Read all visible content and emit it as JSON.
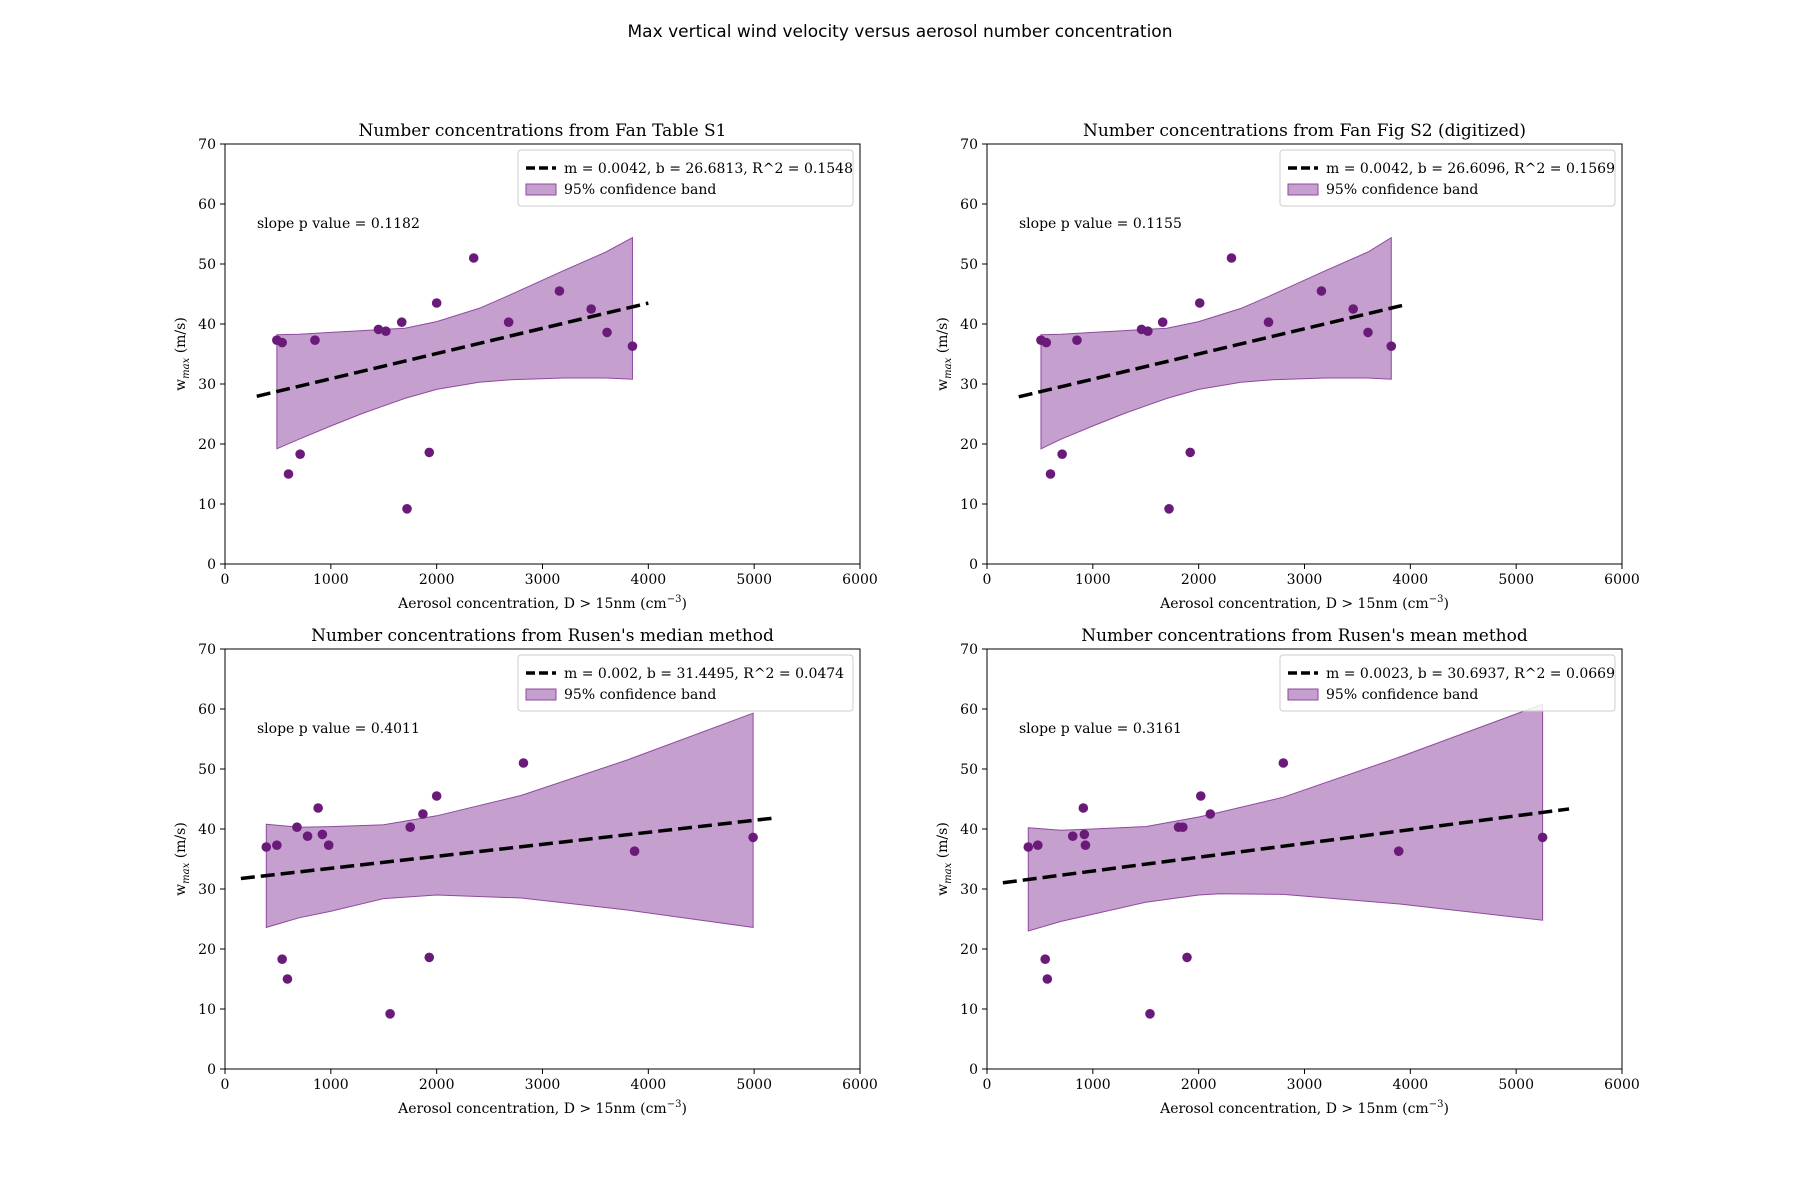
{
  "figure_title": "Max vertical wind velocity versus aerosol number concentration",
  "colors": {
    "points": "#6a1b7a",
    "band_fill": "#a66cb3",
    "band_edge": "#8e4a9e",
    "fit_line": "#000000"
  },
  "chart_data": [
    {
      "type": "scatter",
      "title": "Number concentrations from Fan Table S1",
      "xlabel": "Aerosol concentration, D > 15nm (cm",
      "xlabel_sup": "−3",
      "xlabel_end": ")",
      "ylabel": "w",
      "ylabel_sub": "max",
      "ylabel_end": " (m/s)",
      "xlim": [
        0,
        6000
      ],
      "ylim": [
        0,
        70
      ],
      "xticks": [
        0,
        1000,
        2000,
        3000,
        4000,
        5000,
        6000
      ],
      "yticks": [
        0,
        10,
        20,
        30,
        40,
        50,
        60,
        70
      ],
      "fit": {
        "m": 0.0042,
        "b": 26.6813,
        "x_range": [
          300,
          4000
        ]
      },
      "legend": {
        "placement": "top-right",
        "fit_label": "m = 0.0042, b = 26.6813, R^2 = 0.1548",
        "band_label": "95% confidence band"
      },
      "annotation": "slope p value = 0.1182",
      "band": {
        "x": [
          490,
          700,
          1000,
          1300,
          1700,
          2000,
          2400,
          2700,
          3200,
          3600,
          3850
        ],
        "upper": [
          38.2,
          38.3,
          38.6,
          38.9,
          39.3,
          40.4,
          42.6,
          44.9,
          48.9,
          52.0,
          54.4
        ],
        "lower": [
          19.2,
          20.8,
          23.0,
          25.1,
          27.6,
          29.1,
          30.3,
          30.7,
          31.0,
          31.0,
          30.8
        ]
      },
      "points": {
        "x": [
          490,
          540,
          600,
          710,
          850,
          1450,
          1520,
          1670,
          1930,
          2000,
          1720,
          2350,
          2680,
          3160,
          3460,
          3610,
          3850
        ],
        "y": [
          37.3,
          36.9,
          15.0,
          18.3,
          37.3,
          39.1,
          38.8,
          40.3,
          18.6,
          43.5,
          9.2,
          51.0,
          40.3,
          45.5,
          42.5,
          38.6,
          36.3
        ]
      }
    },
    {
      "type": "scatter",
      "title": "Number concentrations from Fan Fig S2 (digitized)",
      "xlabel": "Aerosol concentration, D > 15nm (cm",
      "xlabel_sup": "−3",
      "xlabel_end": ")",
      "ylabel": "w",
      "ylabel_sub": "max",
      "ylabel_end": " (m/s)",
      "xlim": [
        0,
        6000
      ],
      "ylim": [
        0,
        70
      ],
      "xticks": [
        0,
        1000,
        2000,
        3000,
        4000,
        5000,
        6000
      ],
      "yticks": [
        0,
        10,
        20,
        30,
        40,
        50,
        60,
        70
      ],
      "fit": {
        "m": 0.0042,
        "b": 26.6096,
        "x_range": [
          300,
          3950
        ]
      },
      "legend": {
        "placement": "top-right",
        "fit_label": "m = 0.0042, b = 26.6096, R^2 = 0.1569",
        "band_label": "95% confidence band"
      },
      "annotation": "slope p value = 0.1155",
      "band": {
        "x": [
          510,
          700,
          1000,
          1300,
          1700,
          2000,
          2400,
          2700,
          3200,
          3600,
          3820
        ],
        "upper": [
          38.2,
          38.3,
          38.6,
          38.9,
          39.3,
          40.4,
          42.6,
          44.9,
          48.9,
          52.0,
          54.4
        ],
        "lower": [
          19.2,
          20.8,
          23.0,
          25.1,
          27.6,
          29.1,
          30.3,
          30.7,
          31.0,
          31.0,
          30.8
        ]
      },
      "points": {
        "x": [
          510,
          560,
          600,
          710,
          850,
          1460,
          1520,
          1660,
          1920,
          2010,
          1720,
          2310,
          2660,
          3160,
          3460,
          3600,
          3820
        ],
        "y": [
          37.3,
          36.9,
          15.0,
          18.3,
          37.3,
          39.1,
          38.8,
          40.3,
          18.6,
          43.5,
          9.2,
          51.0,
          40.3,
          45.5,
          42.5,
          38.6,
          36.3
        ]
      }
    },
    {
      "type": "scatter",
      "title": "Number concentrations from Rusen's median method",
      "xlabel": "Aerosol concentration, D > 15nm (cm",
      "xlabel_sup": "−3",
      "xlabel_end": ")",
      "ylabel": "w",
      "ylabel_sub": "max",
      "ylabel_end": " (m/s)",
      "xlim": [
        0,
        6000
      ],
      "ylim": [
        0,
        70
      ],
      "xticks": [
        0,
        1000,
        2000,
        3000,
        4000,
        5000,
        6000
      ],
      "yticks": [
        0,
        10,
        20,
        30,
        40,
        50,
        60,
        70
      ],
      "fit": {
        "m": 0.002,
        "b": 31.4495,
        "x_range": [
          150,
          5200
        ]
      },
      "legend": {
        "placement": "top-right",
        "fit_label": "m = 0.002, b = 31.4495, R^2 = 0.0474",
        "band_label": "95% confidence band"
      },
      "annotation": "slope p value = 0.4011",
      "band": {
        "x": [
          390,
          700,
          1000,
          1500,
          2000,
          2800,
          3800,
          4990
        ],
        "upper": [
          40.8,
          40.3,
          40.4,
          40.7,
          42.2,
          45.6,
          51.5,
          59.3
        ],
        "lower": [
          23.6,
          25.2,
          26.3,
          28.4,
          29.0,
          28.5,
          26.5,
          23.6
        ]
      },
      "points": {
        "x": [
          390,
          490,
          540,
          590,
          680,
          780,
          880,
          920,
          980,
          1560,
          1750,
          1870,
          1930,
          2000,
          2820,
          3870,
          4990
        ],
        "y": [
          37.0,
          37.3,
          18.3,
          15.0,
          40.3,
          38.8,
          43.5,
          39.1,
          37.3,
          9.2,
          40.3,
          42.5,
          18.6,
          45.5,
          51.0,
          36.3,
          38.6
        ]
      }
    },
    {
      "type": "scatter",
      "title": "Number concentrations from Rusen's mean method",
      "xlabel": "Aerosol concentration, D > 15nm (cm",
      "xlabel_sup": "−3",
      "xlabel_end": ")",
      "ylabel": "w",
      "ylabel_sub": "max",
      "ylabel_end": " (m/s)",
      "xlim": [
        0,
        6000
      ],
      "ylim": [
        0,
        70
      ],
      "xticks": [
        0,
        1000,
        2000,
        3000,
        4000,
        5000,
        6000
      ],
      "yticks": [
        0,
        10,
        20,
        30,
        40,
        50,
        60,
        70
      ],
      "fit": {
        "m": 0.0023,
        "b": 30.6937,
        "x_range": [
          150,
          5500
        ]
      },
      "legend": {
        "placement": "top-right",
        "fit_label": "m = 0.0023, b = 30.6937, R^2 = 0.0669",
        "band_label": "95% confidence band"
      },
      "annotation": "slope p value = 0.3161",
      "band": {
        "x": [
          390,
          700,
          1000,
          1500,
          2000,
          2200,
          2800,
          3900,
          5250
        ],
        "upper": [
          40.2,
          39.8,
          40.0,
          40.4,
          42.0,
          42.8,
          45.3,
          52.0,
          60.8
        ],
        "lower": [
          23.0,
          24.6,
          25.8,
          27.8,
          29.0,
          29.2,
          29.1,
          27.5,
          24.8
        ]
      },
      "points": {
        "x": [
          390,
          480,
          550,
          570,
          810,
          910,
          920,
          930,
          1540,
          1810,
          1850,
          1890,
          2020,
          2110,
          2800,
          3890,
          5250
        ],
        "y": [
          37.0,
          37.3,
          18.3,
          15.0,
          38.8,
          43.5,
          39.1,
          37.3,
          9.2,
          40.3,
          40.3,
          18.6,
          45.5,
          42.5,
          51.0,
          36.3,
          38.6
        ]
      }
    }
  ]
}
